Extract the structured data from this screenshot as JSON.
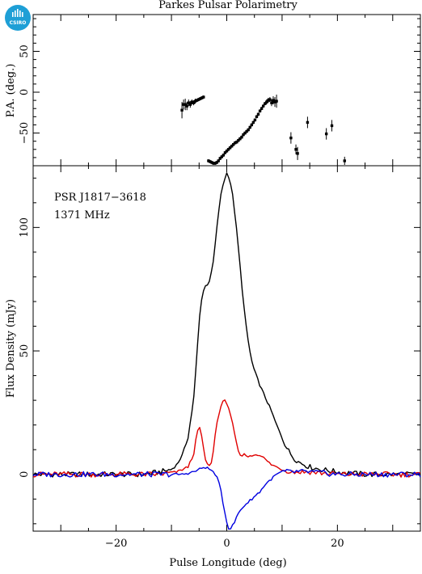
{
  "logo": {
    "text": "CSIRO",
    "color": "#1e9fd6"
  },
  "chart_data": [
    {
      "type": "scatter",
      "title": "Parkes Pulsar Polarimetry",
      "ylabel": "P.A. (deg.)",
      "xlim": [
        -35,
        35
      ],
      "ylim": [
        -90,
        95
      ],
      "yticks": [
        -50,
        0,
        50
      ],
      "series": [
        {
          "points": [
            {
              "x": -8.1,
              "y": -22,
              "err": 10
            },
            {
              "x": -7.8,
              "y": -15,
              "err": 6
            },
            {
              "x": -7.5,
              "y": -15,
              "err": 7
            },
            {
              "x": -7.2,
              "y": -17,
              "err": 5
            },
            {
              "x": -6.9,
              "y": -13,
              "err": 4
            },
            {
              "x": -6.6,
              "y": -15,
              "err": 4
            },
            {
              "x": -6.3,
              "y": -12,
              "err": 3
            },
            {
              "x": -6.0,
              "y": -13,
              "err": 3
            },
            {
              "x": -5.7,
              "y": -11,
              "err": 3
            },
            {
              "x": -5.4,
              "y": -10,
              "err": 2
            },
            {
              "x": -5.1,
              "y": -9,
              "err": 2
            },
            {
              "x": -4.8,
              "y": -8,
              "err": 2
            },
            {
              "x": -4.5,
              "y": -7,
              "err": 2
            },
            {
              "x": -4.2,
              "y": -6,
              "err": 2
            },
            {
              "x": -3.3,
              "y": -84,
              "err": 2
            },
            {
              "x": -3.0,
              "y": -85,
              "err": 2
            },
            {
              "x": -2.7,
              "y": -86,
              "err": 2
            },
            {
              "x": -2.4,
              "y": -87,
              "err": 2
            },
            {
              "x": -2.1,
              "y": -87,
              "err": 2
            },
            {
              "x": -1.8,
              "y": -86,
              "err": 2
            },
            {
              "x": -1.5,
              "y": -84,
              "err": 2
            },
            {
              "x": -1.2,
              "y": -81,
              "err": 2
            },
            {
              "x": -0.9,
              "y": -79,
              "err": 2
            },
            {
              "x": -0.6,
              "y": -77,
              "err": 2
            },
            {
              "x": -0.3,
              "y": -74,
              "err": 2
            },
            {
              "x": 0.0,
              "y": -72,
              "err": 2
            },
            {
              "x": 0.3,
              "y": -70,
              "err": 2
            },
            {
              "x": 0.6,
              "y": -68,
              "err": 2
            },
            {
              "x": 0.9,
              "y": -66,
              "err": 2
            },
            {
              "x": 1.2,
              "y": -64,
              "err": 2
            },
            {
              "x": 1.5,
              "y": -62,
              "err": 2
            },
            {
              "x": 1.8,
              "y": -61,
              "err": 2
            },
            {
              "x": 2.1,
              "y": -59,
              "err": 2
            },
            {
              "x": 2.4,
              "y": -57,
              "err": 2
            },
            {
              "x": 2.7,
              "y": -55,
              "err": 2
            },
            {
              "x": 3.0,
              "y": -52,
              "err": 2
            },
            {
              "x": 3.3,
              "y": -50,
              "err": 2
            },
            {
              "x": 3.6,
              "y": -48,
              "err": 2
            },
            {
              "x": 3.9,
              "y": -46,
              "err": 2
            },
            {
              "x": 4.2,
              "y": -43,
              "err": 2
            },
            {
              "x": 4.5,
              "y": -40,
              "err": 2
            },
            {
              "x": 4.8,
              "y": -37,
              "err": 2
            },
            {
              "x": 5.1,
              "y": -34,
              "err": 2
            },
            {
              "x": 5.4,
              "y": -30,
              "err": 2
            },
            {
              "x": 5.7,
              "y": -27,
              "err": 2
            },
            {
              "x": 6.0,
              "y": -23,
              "err": 2
            },
            {
              "x": 6.3,
              "y": -20,
              "err": 2
            },
            {
              "x": 6.6,
              "y": -17,
              "err": 2
            },
            {
              "x": 6.9,
              "y": -14,
              "err": 2
            },
            {
              "x": 7.2,
              "y": -12,
              "err": 3
            },
            {
              "x": 7.5,
              "y": -10,
              "err": 3
            },
            {
              "x": 7.8,
              "y": -9,
              "err": 3
            },
            {
              "x": 8.1,
              "y": -13,
              "err": 4
            },
            {
              "x": 8.4,
              "y": -10,
              "err": 5
            },
            {
              "x": 8.7,
              "y": -12,
              "err": 6
            },
            {
              "x": 9.0,
              "y": -11,
              "err": 8
            },
            {
              "x": 11.6,
              "y": -56,
              "err": 7
            },
            {
              "x": 12.5,
              "y": -70,
              "err": 6
            },
            {
              "x": 12.8,
              "y": -75,
              "err": 8
            },
            {
              "x": 14.6,
              "y": -37,
              "err": 7
            },
            {
              "x": 18.0,
              "y": -51,
              "err": 7
            },
            {
              "x": 19.0,
              "y": -41,
              "err": 7
            },
            {
              "x": 21.3,
              "y": -84,
              "err": 5
            }
          ]
        }
      ]
    },
    {
      "type": "line",
      "xlabel": "Pulse Longitude (deg)",
      "ylabel": "Flux Density (mJy)",
      "xlim": [
        -35,
        35
      ],
      "ylim": [
        -23,
        125
      ],
      "xticks": [
        -20,
        0,
        20
      ],
      "yticks": [
        0,
        50,
        100
      ],
      "annotations": [
        "PSR J1817−3618",
        "1371 MHz"
      ],
      "series": [
        {
          "color": "#000000",
          "x": [
            -35,
            -15,
            -12,
            -10,
            -9,
            -8,
            -7,
            -6,
            -5.5,
            -5,
            -4.5,
            -4,
            -3.5,
            -3,
            -2.5,
            -2,
            -1.5,
            -1,
            -0.5,
            0,
            0.5,
            1,
            1.5,
            2,
            2.5,
            3,
            3.5,
            4,
            4.5,
            5,
            6,
            7,
            8,
            9,
            10,
            11,
            12,
            13,
            14,
            15,
            17,
            20,
            25,
            35
          ],
          "y": [
            0,
            0,
            1,
            2,
            4,
            8,
            15,
            30,
            45,
            62,
            72,
            76,
            77,
            79,
            85,
            95,
            106,
            114,
            119,
            122,
            120,
            114,
            105,
            94,
            82,
            70,
            60,
            52,
            46,
            42,
            36,
            31,
            26,
            20,
            15,
            10,
            7,
            5,
            4,
            3,
            2,
            1,
            0,
            0
          ]
        },
        {
          "color": "#e00000",
          "x": [
            -35,
            -12,
            -9,
            -7,
            -6,
            -5.5,
            -5,
            -4.5,
            -4,
            -3.5,
            -3,
            -2.5,
            -2,
            -1.5,
            -1,
            -0.5,
            0,
            0.5,
            1,
            1.5,
            2,
            2.5,
            3,
            3.5,
            4,
            5,
            6,
            7,
            8,
            9,
            10,
            12,
            15,
            20,
            35
          ],
          "y": [
            0,
            0,
            1,
            3,
            8,
            15,
            20,
            15,
            7,
            4,
            3,
            8,
            18,
            24,
            28,
            30,
            29,
            26,
            21,
            15,
            10,
            7,
            8,
            8,
            7,
            8,
            8,
            6,
            4,
            3,
            2,
            1,
            1,
            0,
            0
          ]
        },
        {
          "color": "#0000e0",
          "x": [
            -35,
            -12,
            -8,
            -6,
            -5,
            -4,
            -3,
            -2.5,
            -2,
            -1.5,
            -1,
            -0.5,
            0,
            0.3,
            0.6,
            1,
            1.5,
            2,
            3,
            4,
            5,
            6,
            7,
            8,
            9,
            10,
            12,
            15,
            20,
            35
          ],
          "y": [
            0,
            0,
            0,
            1,
            2,
            3,
            2,
            1,
            0,
            -3,
            -7,
            -14,
            -19,
            -22,
            -22,
            -21,
            -19,
            -16,
            -13,
            -11,
            -9,
            -7,
            -4,
            -2,
            0,
            1,
            1,
            1,
            0,
            0
          ]
        }
      ]
    }
  ]
}
